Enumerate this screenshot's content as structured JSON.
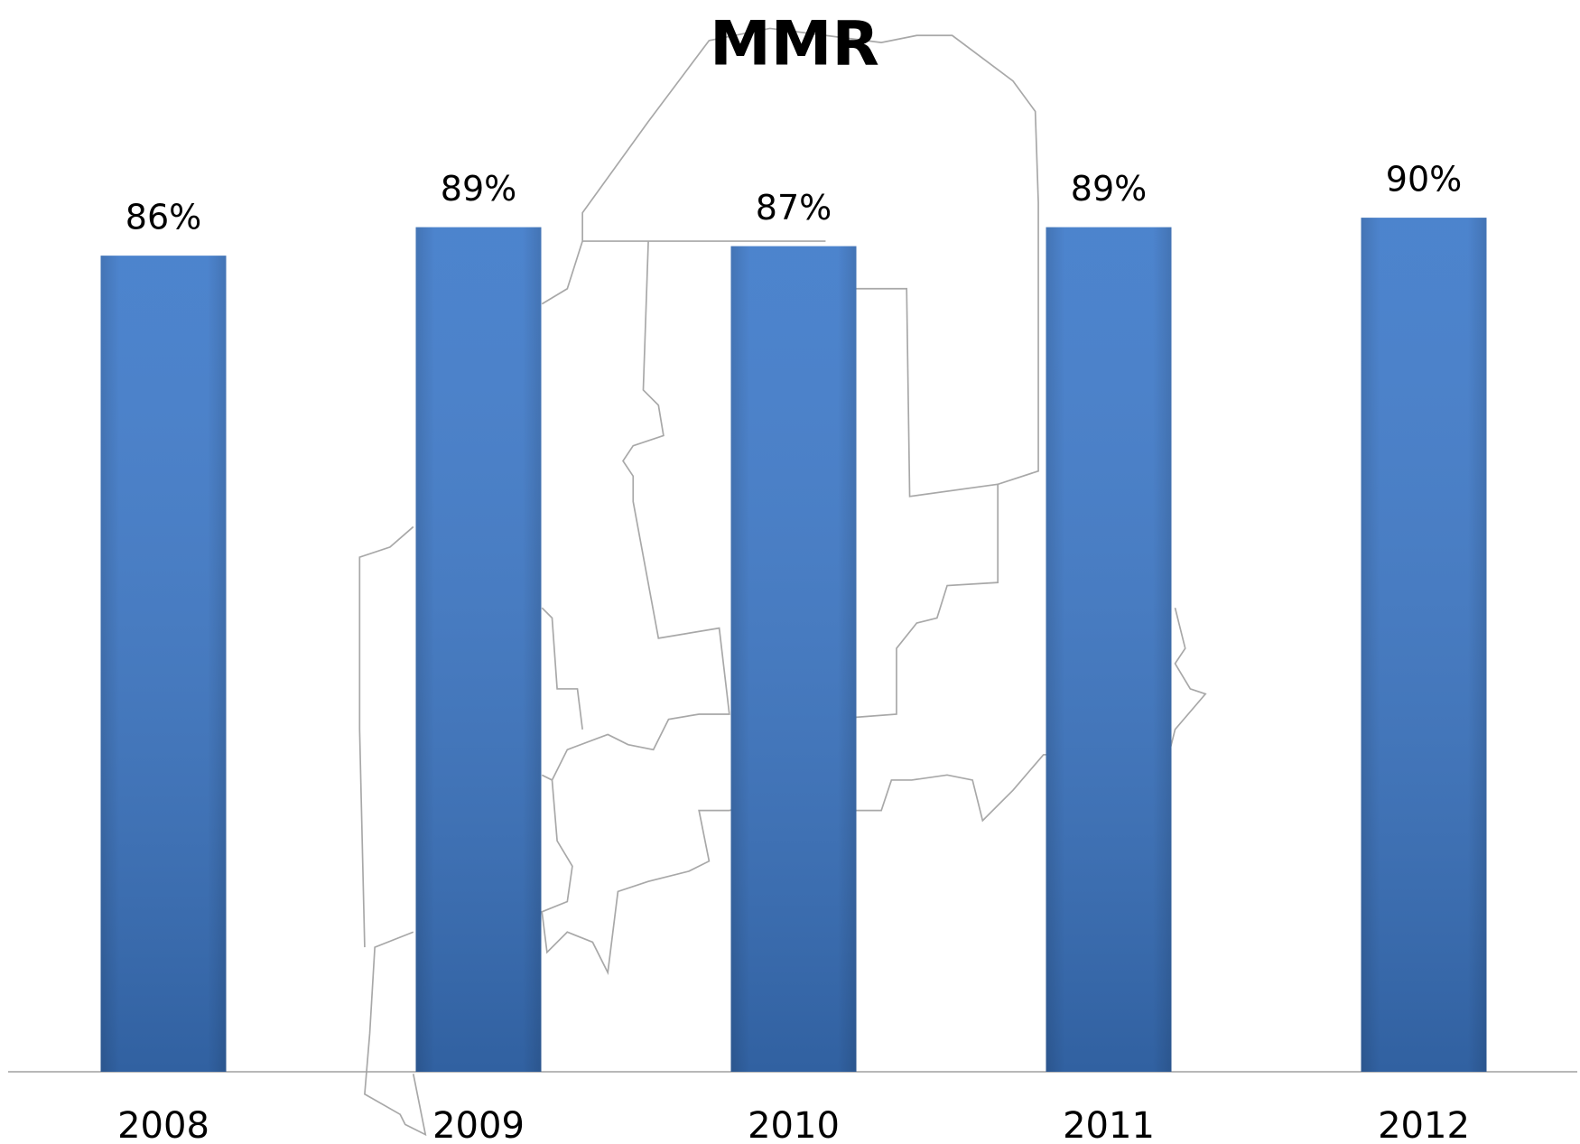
{
  "chart_data": {
    "type": "bar",
    "title": "MMR",
    "categories": [
      "2008",
      "2009",
      "2010",
      "2011",
      "2012"
    ],
    "values": [
      86,
      89,
      87,
      89,
      90
    ],
    "value_labels": [
      "86%",
      "89%",
      "87%",
      "89%",
      "90%"
    ],
    "color": "#3d79c9",
    "ylim": [
      0,
      100
    ]
  }
}
